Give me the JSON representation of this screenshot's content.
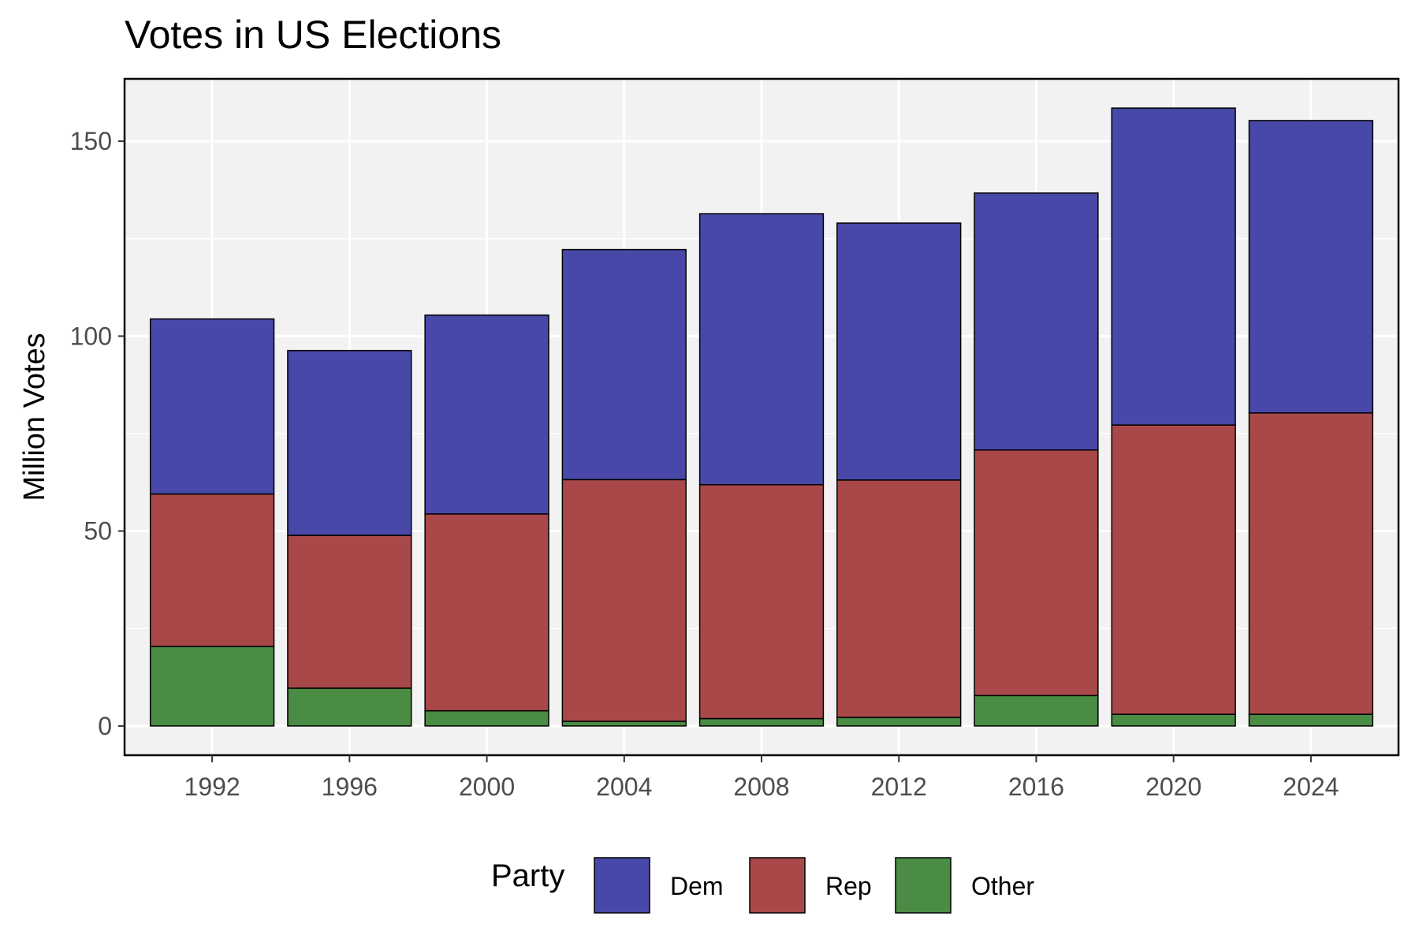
{
  "chart_data": {
    "type": "bar",
    "stacked": true,
    "title": "Votes in US Elections",
    "xlabel": "",
    "ylabel": "Million Votes",
    "categories": [
      "1992",
      "1996",
      "2000",
      "2004",
      "2008",
      "2012",
      "2016",
      "2020",
      "2024"
    ],
    "x_ticks": [
      "1992",
      "1996",
      "2000",
      "2004",
      "2008",
      "2012",
      "2016",
      "2020",
      "2024"
    ],
    "y_ticks": [
      0,
      50,
      100,
      150
    ],
    "ylim": [
      -7.5,
      166
    ],
    "grid": true,
    "legend_title": "Party",
    "legend_position": "bottom",
    "series": [
      {
        "name": "Other",
        "color": "#4a8c44",
        "values": [
          20.4,
          9.7,
          3.9,
          1.2,
          1.9,
          2.2,
          7.8,
          3.0,
          3.0
        ]
      },
      {
        "name": "Rep",
        "color": "#a84849",
        "values": [
          39.1,
          39.2,
          50.5,
          62.0,
          60.0,
          60.9,
          63.0,
          74.2,
          77.3
        ]
      },
      {
        "name": "Dem",
        "color": "#4848a8",
        "values": [
          44.9,
          47.4,
          51.0,
          59.0,
          69.5,
          65.9,
          65.9,
          81.3,
          75.0
        ]
      }
    ],
    "legend_order": [
      "Dem",
      "Rep",
      "Other"
    ],
    "colors": {
      "panel_bg": "#f2f2f2",
      "grid": "#ffffff",
      "border": "#000000"
    }
  }
}
